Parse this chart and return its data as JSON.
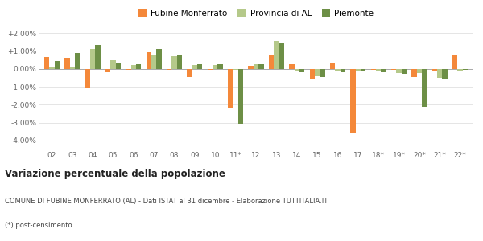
{
  "years": [
    "02",
    "03",
    "04",
    "05",
    "06",
    "07",
    "08",
    "09",
    "10",
    "11*",
    "12",
    "13",
    "14",
    "15",
    "16",
    "17",
    "18*",
    "19*",
    "20*",
    "21*",
    "22*"
  ],
  "fubine": [
    0.65,
    0.6,
    -1.05,
    -0.2,
    -0.05,
    0.95,
    -0.05,
    -0.45,
    -0.08,
    -2.2,
    0.15,
    0.75,
    0.25,
    -0.55,
    0.3,
    -3.55,
    -0.05,
    -0.05,
    -0.45,
    -0.1,
    0.75
  ],
  "provincia": [
    0.1,
    0.1,
    1.1,
    0.5,
    0.2,
    0.75,
    0.7,
    0.2,
    0.2,
    -0.08,
    0.25,
    1.55,
    -0.15,
    -0.4,
    -0.1,
    -0.1,
    -0.15,
    -0.25,
    -0.25,
    -0.5,
    -0.1
  ],
  "piemonte": [
    0.45,
    0.9,
    1.35,
    0.35,
    0.25,
    1.1,
    0.8,
    0.25,
    0.25,
    -3.05,
    0.25,
    1.45,
    -0.2,
    -0.45,
    -0.2,
    -0.15,
    -0.2,
    -0.3,
    -2.1,
    -0.55,
    -0.05
  ],
  "color_fubine": "#f4883a",
  "color_provincia": "#b5c98a",
  "color_piemonte": "#6d8f46",
  "title_bold": "Variazione percentuale della popolazione",
  "subtitle": "COMUNE DI FUBINE MONFERRATO (AL) - Dati ISTAT al 31 dicembre - Elaborazione TUTTITALIA.IT",
  "footnote": "(*) post-censimento",
  "ylim": [
    -4.5,
    2.5
  ],
  "yticks": [
    -4.0,
    -3.0,
    -2.0,
    -1.0,
    0.0,
    1.0,
    2.0
  ],
  "ytick_labels": [
    "-4.00%",
    "-3.00%",
    "-2.00%",
    "-1.00%",
    "0.00%",
    "+1.00%",
    "+2.00%"
  ],
  "background_color": "#ffffff",
  "grid_color": "#e0e0e0",
  "legend_labels": [
    "Fubine Monferrato",
    "Provincia di AL",
    "Piemonte"
  ]
}
